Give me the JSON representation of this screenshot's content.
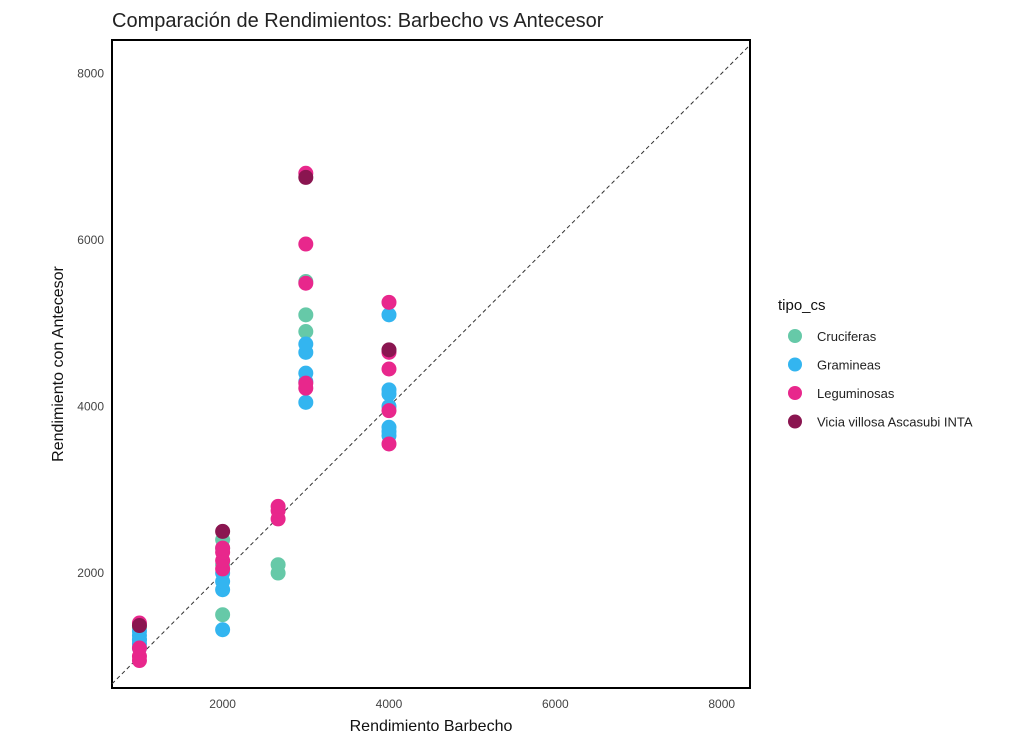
{
  "chart_data": {
    "type": "scatter",
    "title": "Comparación de Rendimientos: Barbecho vs Antecesor",
    "xlabel": "Rendimiento Barbecho",
    "ylabel": "Rendimiento con Antecesor",
    "xlim": [
      670,
      8340
    ],
    "ylim": [
      620,
      8400
    ],
    "x_ticks": [
      2000,
      4000,
      6000,
      8000
    ],
    "y_ticks": [
      2000,
      4000,
      6000,
      8000
    ],
    "reference_line": "identity (y = x), dashed",
    "legend_title": "tipo_cs",
    "legend_position": "right",
    "series": [
      {
        "name": "Cruciferas",
        "color": "#66c9a8",
        "points": [
          [
            1000,
            1200
          ],
          [
            1000,
            1350
          ],
          [
            2000,
            1500
          ],
          [
            2000,
            2100
          ],
          [
            2000,
            2300
          ],
          [
            2000,
            2400
          ],
          [
            2667,
            2000
          ],
          [
            2667,
            2100
          ],
          [
            3000,
            4900
          ],
          [
            3000,
            5100
          ],
          [
            3000,
            5500
          ]
        ]
      },
      {
        "name": "Gramineas",
        "color": "#33b5f0",
        "points": [
          [
            1000,
            1100
          ],
          [
            1000,
            1150
          ],
          [
            1000,
            1200
          ],
          [
            1000,
            1250
          ],
          [
            1000,
            1300
          ],
          [
            2000,
            1320
          ],
          [
            2000,
            1800
          ],
          [
            2000,
            1900
          ],
          [
            2000,
            2000
          ],
          [
            3000,
            4050
          ],
          [
            3000,
            4300
          ],
          [
            3000,
            4400
          ],
          [
            3000,
            4650
          ],
          [
            3000,
            4750
          ],
          [
            4000,
            3650
          ],
          [
            4000,
            3700
          ],
          [
            4000,
            3750
          ],
          [
            4000,
            4000
          ],
          [
            4000,
            4150
          ],
          [
            4000,
            4200
          ],
          [
            4000,
            5100
          ]
        ]
      },
      {
        "name": "Leguminosas",
        "color": "#e8278c",
        "points": [
          [
            1000,
            950
          ],
          [
            1000,
            1000
          ],
          [
            1000,
            1100
          ],
          [
            1000,
            1400
          ],
          [
            2000,
            2050
          ],
          [
            2000,
            2150
          ],
          [
            2000,
            2250
          ],
          [
            2000,
            2300
          ],
          [
            2667,
            2650
          ],
          [
            2667,
            2750
          ],
          [
            2667,
            2800
          ],
          [
            3000,
            4220
          ],
          [
            3000,
            4280
          ],
          [
            3000,
            5480
          ],
          [
            3000,
            5950
          ],
          [
            3000,
            6800
          ],
          [
            4000,
            3550
          ],
          [
            4000,
            3950
          ],
          [
            4000,
            4450
          ],
          [
            4000,
            4650
          ],
          [
            4000,
            5250
          ]
        ]
      },
      {
        "name": "Vicia villosa Ascasubi INTA",
        "color": "#8a1550",
        "points": [
          [
            1000,
            1370
          ],
          [
            2000,
            2500
          ],
          [
            3000,
            6750
          ],
          [
            4000,
            4680
          ]
        ]
      }
    ]
  }
}
